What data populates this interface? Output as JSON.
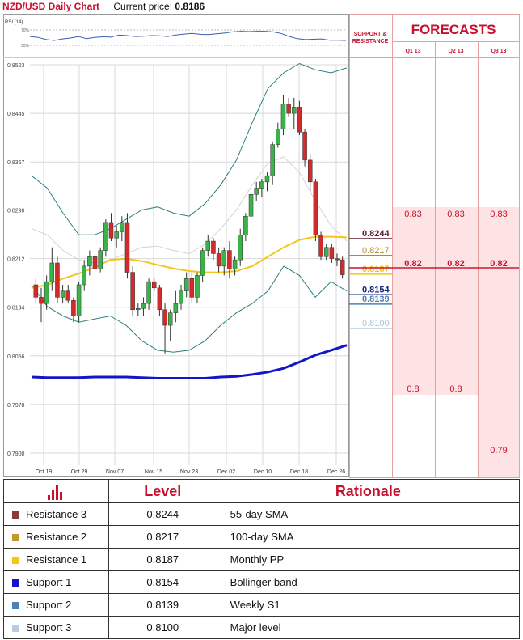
{
  "header": {
    "title": "NZD/USD Daily Chart",
    "price_label": "Current price:",
    "price_value": "0.8186"
  },
  "chart_data": [
    {
      "type": "candlestick",
      "title": "NZD/USD Daily Chart",
      "ylim": [
        0.79,
        0.8523
      ],
      "y_ticks": [
        "0.8523",
        "0.8445",
        "0.8367",
        "0.8290",
        "0.8212",
        "0.8134",
        "0.8056",
        "0.7978",
        "0.7900"
      ],
      "x_ticks": [
        "Oct 19",
        "Oct 29",
        "Nov 07",
        "Nov 15",
        "Nov 23",
        "Dec 02",
        "Dec 10",
        "Dec 18",
        "Dec 26"
      ],
      "candles": [
        [
          0.817,
          0.818,
          0.814,
          0.815
        ],
        [
          0.815,
          0.8165,
          0.811,
          0.814
        ],
        [
          0.814,
          0.8185,
          0.813,
          0.8175
        ],
        [
          0.8175,
          0.823,
          0.816,
          0.8205
        ],
        [
          0.8205,
          0.8215,
          0.814,
          0.815
        ],
        [
          0.815,
          0.817,
          0.814,
          0.816
        ],
        [
          0.816,
          0.817,
          0.814,
          0.8145
        ],
        [
          0.8145,
          0.815,
          0.811,
          0.812
        ],
        [
          0.812,
          0.8175,
          0.811,
          0.817
        ],
        [
          0.817,
          0.821,
          0.816,
          0.82
        ],
        [
          0.82,
          0.8225,
          0.8185,
          0.8215
        ],
        [
          0.8215,
          0.822,
          0.819,
          0.8195
        ],
        [
          0.8195,
          0.823,
          0.819,
          0.8225
        ],
        [
          0.8225,
          0.8275,
          0.8215,
          0.827
        ],
        [
          0.827,
          0.8285,
          0.824,
          0.8245
        ],
        [
          0.8245,
          0.8265,
          0.823,
          0.8255
        ],
        [
          0.8255,
          0.828,
          0.824,
          0.827
        ],
        [
          0.827,
          0.8285,
          0.818,
          0.819
        ],
        [
          0.819,
          0.82,
          0.812,
          0.813
        ],
        [
          0.813,
          0.814,
          0.812,
          0.8132
        ],
        [
          0.8132,
          0.815,
          0.812,
          0.814
        ],
        [
          0.814,
          0.818,
          0.813,
          0.8175
        ],
        [
          0.8175,
          0.818,
          0.816,
          0.8165
        ],
        [
          0.8165,
          0.817,
          0.812,
          0.813
        ],
        [
          0.813,
          0.814,
          0.806,
          0.8105
        ],
        [
          0.8105,
          0.813,
          0.808,
          0.8125
        ],
        [
          0.8125,
          0.816,
          0.811,
          0.814
        ],
        [
          0.814,
          0.817,
          0.813,
          0.816
        ],
        [
          0.816,
          0.819,
          0.815,
          0.818
        ],
        [
          0.818,
          0.819,
          0.814,
          0.815
        ],
        [
          0.815,
          0.819,
          0.814,
          0.8185
        ],
        [
          0.8185,
          0.823,
          0.8175,
          0.8225
        ],
        [
          0.8225,
          0.825,
          0.8215,
          0.824
        ],
        [
          0.824,
          0.8245,
          0.821,
          0.822
        ],
        [
          0.822,
          0.823,
          0.819,
          0.82
        ],
        [
          0.82,
          0.823,
          0.8185,
          0.8225
        ],
        [
          0.8225,
          0.824,
          0.818,
          0.8195
        ],
        [
          0.8195,
          0.8215,
          0.8185,
          0.821
        ],
        [
          0.821,
          0.826,
          0.82,
          0.825
        ],
        [
          0.825,
          0.8285,
          0.824,
          0.828
        ],
        [
          0.828,
          0.832,
          0.827,
          0.8315
        ],
        [
          0.8315,
          0.8335,
          0.8305,
          0.8325
        ],
        [
          0.8325,
          0.834,
          0.831,
          0.8335
        ],
        [
          0.8335,
          0.835,
          0.832,
          0.8345
        ],
        [
          0.8345,
          0.84,
          0.833,
          0.8395
        ],
        [
          0.8395,
          0.843,
          0.839,
          0.842
        ],
        [
          0.842,
          0.8475,
          0.841,
          0.846
        ],
        [
          0.846,
          0.847,
          0.844,
          0.8445
        ],
        [
          0.8445,
          0.847,
          0.842,
          0.8455
        ],
        [
          0.8455,
          0.8465,
          0.841,
          0.8415
        ],
        [
          0.8415,
          0.842,
          0.836,
          0.837
        ],
        [
          0.837,
          0.838,
          0.832,
          0.8335
        ],
        [
          0.8335,
          0.834,
          0.824,
          0.825
        ],
        [
          0.825,
          0.8255,
          0.821,
          0.8215
        ],
        [
          0.8215,
          0.8235,
          0.821,
          0.823
        ],
        [
          0.823,
          0.8235,
          0.8205,
          0.8212
        ],
        [
          0.8212,
          0.822,
          0.82,
          0.821
        ],
        [
          0.821,
          0.8215,
          0.818,
          0.8186
        ]
      ],
      "bands_upper": [
        0.8345,
        0.8325,
        0.8285,
        0.825,
        0.825,
        0.826,
        0.8275,
        0.829,
        0.8295,
        0.8285,
        0.828,
        0.83,
        0.833,
        0.837,
        0.843,
        0.8485,
        0.851,
        0.8525,
        0.8515,
        0.851,
        0.8518
      ],
      "bands_middle": [
        0.826,
        0.825,
        0.8225,
        0.821,
        0.8205,
        0.821,
        0.822,
        0.823,
        0.8232,
        0.8225,
        0.822,
        0.8235,
        0.826,
        0.829,
        0.833,
        0.8365,
        0.8375,
        0.835,
        0.8305,
        0.8265,
        0.824
      ],
      "bands_lower": [
        0.817,
        0.8135,
        0.812,
        0.811,
        0.8115,
        0.812,
        0.8105,
        0.808,
        0.8065,
        0.8062,
        0.8065,
        0.808,
        0.8105,
        0.8125,
        0.814,
        0.816,
        0.82,
        0.8185,
        0.815,
        0.8175,
        0.816
      ],
      "sma_yellow": [
        0.8165,
        0.817,
        0.818,
        0.8188,
        0.8198,
        0.821,
        0.8212,
        0.8208,
        0.8202,
        0.8196,
        0.8192,
        0.819,
        0.819,
        0.8192,
        0.82,
        0.8215,
        0.823,
        0.8242,
        0.8247,
        0.8247,
        0.8246
      ],
      "sma_blue": [
        0.8022,
        0.8021,
        0.8021,
        0.8021,
        0.8022,
        0.8022,
        0.8022,
        0.8021,
        0.802,
        0.802,
        0.802,
        0.802,
        0.8022,
        0.8023,
        0.8026,
        0.803,
        0.8036,
        0.8046,
        0.8057,
        0.8065,
        0.8073
      ]
    },
    {
      "type": "line",
      "title": "RSI (14)",
      "y_ticks": [
        "70%",
        "30%"
      ],
      "values": [
        0.55,
        0.52,
        0.45,
        0.42,
        0.47,
        0.5,
        0.55,
        0.48,
        0.52,
        0.54,
        0.53,
        0.6,
        0.58,
        0.55,
        0.56,
        0.58,
        0.57,
        0.55,
        0.6,
        0.63,
        0.65,
        0.62,
        0.61,
        0.64,
        0.66,
        0.7,
        0.72,
        0.71,
        0.72,
        0.72,
        0.7,
        0.65,
        0.55,
        0.48,
        0.45,
        0.46,
        0.47,
        0.43,
        0.43,
        0.42
      ]
    }
  ],
  "sr_panel": {
    "title_line1": "SUPPORT &",
    "title_line2": "RESISTANCE",
    "levels": [
      {
        "value": "0.8244",
        "color": "#5b1a33"
      },
      {
        "value": "0.8217",
        "color": "#b38b2d"
      },
      {
        "value": "0.8187",
        "color": "#f5c518"
      },
      {
        "value": "0.8154",
        "color": "#1a237e"
      },
      {
        "value": "0.8139",
        "color": "#4f7fb5"
      },
      {
        "value": "0.8100",
        "color": "#a8c6d6"
      }
    ]
  },
  "forecasts": {
    "title": "FORECASTS",
    "columns": [
      "Q1 13",
      "Q2 13",
      "Q3 13"
    ],
    "highs": [
      "0.83",
      "0.83",
      "0.83"
    ],
    "mids": [
      "0.82",
      "0.82",
      "0.82"
    ],
    "lows": [
      "0.8",
      "0.8",
      "0.79"
    ]
  },
  "levels_table": {
    "icon": "bar-chart-icon",
    "level_header": "Level",
    "rationale_header": "Rationale",
    "rows": [
      {
        "name": "Resistance 3",
        "level": "0.8244",
        "rationale": "55-day SMA",
        "color": "#8b3a3a"
      },
      {
        "name": "Resistance 2",
        "level": "0.8217",
        "rationale": "100-day SMA",
        "color": "#c8962e"
      },
      {
        "name": "Resistance 1",
        "level": "0.8187",
        "rationale": "Monthly PP",
        "color": "#f5c518"
      },
      {
        "name": "Support 1",
        "level": "0.8154",
        "rationale": "Bollinger band",
        "color": "#1515c8"
      },
      {
        "name": "Support 2",
        "level": "0.8139",
        "rationale": "Weekly S1",
        "color": "#4f7fb5"
      },
      {
        "name": "Support 3",
        "level": "0.8100",
        "rationale": "Major level",
        "color": "#b8cbe0"
      }
    ]
  }
}
